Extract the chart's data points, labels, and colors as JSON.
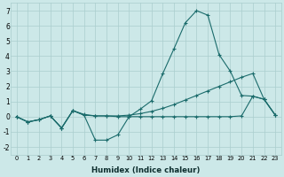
{
  "xlabel": "Humidex (Indice chaleur)",
  "x_values": [
    0,
    1,
    2,
    3,
    4,
    5,
    6,
    7,
    8,
    9,
    10,
    11,
    12,
    13,
    14,
    15,
    16,
    17,
    18,
    19,
    20,
    21,
    22,
    23
  ],
  "line1": [
    0.0,
    -0.35,
    -0.2,
    0.05,
    -0.75,
    0.4,
    0.1,
    -1.55,
    -1.55,
    -1.2,
    0.0,
    0.5,
    1.05,
    2.85,
    4.5,
    6.2,
    7.0,
    6.7,
    4.1,
    3.0,
    1.4,
    1.35,
    1.15,
    0.1
  ],
  "line2": [
    0.0,
    -0.35,
    -0.2,
    0.05,
    -0.75,
    0.4,
    0.15,
    0.05,
    0.05,
    0.05,
    0.1,
    0.2,
    0.35,
    0.55,
    0.8,
    1.1,
    1.4,
    1.7,
    2.0,
    2.3,
    2.6,
    2.85,
    1.15,
    0.1
  ],
  "line3": [
    0.0,
    -0.35,
    -0.2,
    0.05,
    -0.75,
    0.4,
    0.1,
    0.05,
    0.05,
    0.0,
    0.0,
    0.0,
    0.0,
    0.0,
    0.0,
    0.0,
    0.0,
    0.0,
    0.0,
    0.0,
    0.05,
    1.35,
    1.15,
    0.1
  ],
  "bg_color": "#cce8e8",
  "line_color": "#1a6b6b",
  "grid_color": "#aacece",
  "ylim": [
    -2.5,
    7.5
  ],
  "xlim": [
    -0.5,
    23.5
  ]
}
